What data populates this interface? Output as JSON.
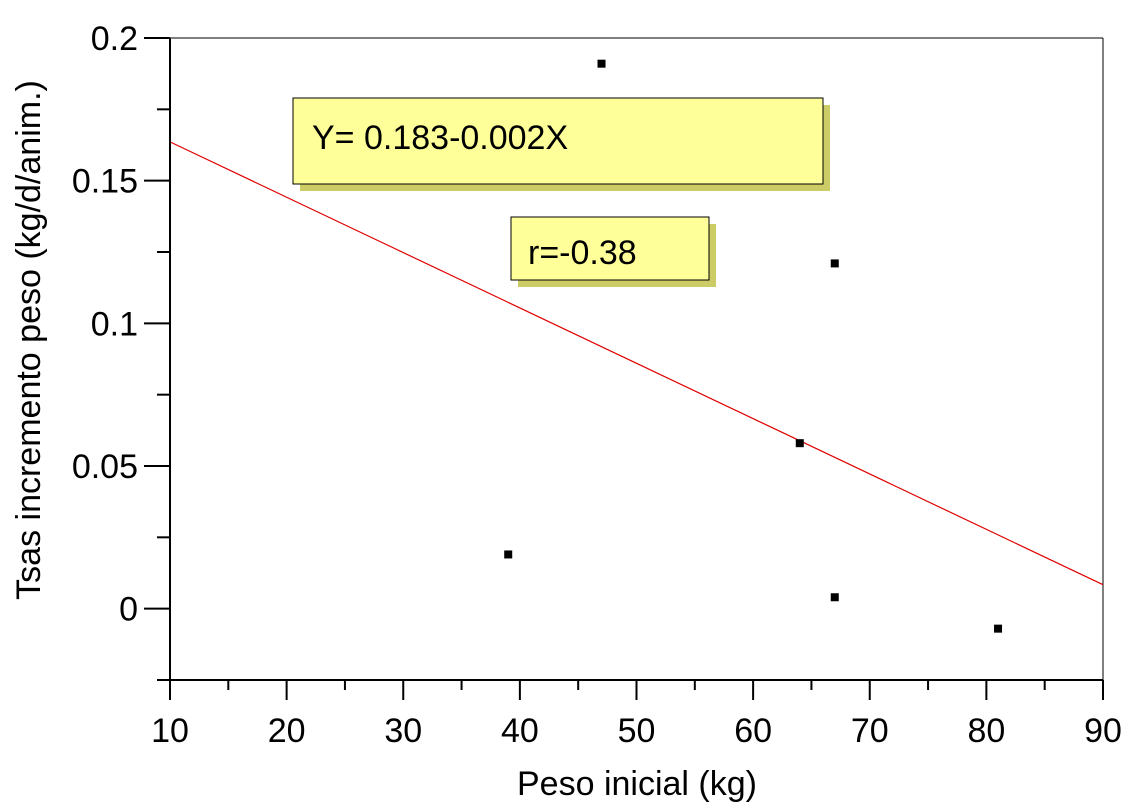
{
  "chart_data": {
    "type": "scatter",
    "xlabel": "Peso inicial (kg)",
    "ylabel": "Tsas incremento peso (kg/d/anim.)",
    "xlim": [
      10,
      90
    ],
    "ylim": [
      -0.025,
      0.2
    ],
    "x_ticks": [
      10,
      20,
      30,
      40,
      50,
      60,
      70,
      80,
      90
    ],
    "y_ticks": [
      0,
      0.05,
      0.1,
      0.15,
      0.2
    ],
    "y_tick_labels": [
      "0",
      "0.05",
      "0.1",
      "0.15",
      "0.2"
    ],
    "grid": false,
    "points": [
      {
        "x": 39,
        "y": 0.019
      },
      {
        "x": 47,
        "y": 0.191
      },
      {
        "x": 64,
        "y": 0.058
      },
      {
        "x": 67,
        "y": 0.121
      },
      {
        "x": 67,
        "y": 0.004
      },
      {
        "x": 81,
        "y": -0.007
      }
    ],
    "regression": {
      "intercept": 0.183,
      "slope": -0.00194,
      "x_range": [
        10,
        90
      ]
    },
    "annotations": [
      {
        "id": "equation",
        "text": "Y= 0.183-0.002X"
      },
      {
        "id": "correlation",
        "text": "r=-0.38"
      }
    ],
    "colors": {
      "line": "#e00000",
      "points": "#000000",
      "annotation_fill": "#ffff99",
      "annotation_shadow": "#cccc66",
      "axis": "#000000"
    }
  }
}
